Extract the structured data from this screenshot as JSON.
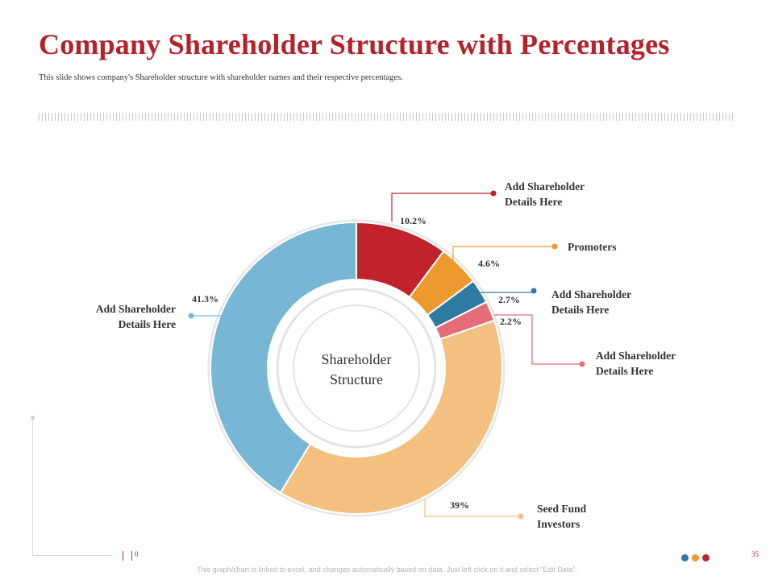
{
  "header": {
    "title": "Company Shareholder Structure with Percentages",
    "subtitle": "This slide shows company's Shareholder  structure with shareholder names and their respective percentages."
  },
  "chart_data": {
    "type": "pie",
    "variant": "donut",
    "center_label": [
      "Shareholder",
      "Structure"
    ],
    "slices": [
      {
        "label": [
          "Add Shareholder",
          "Details Here"
        ],
        "value": 10.2,
        "value_label": "10.2%",
        "color": "#c0232c"
      },
      {
        "label": [
          "Promoters"
        ],
        "value": 4.6,
        "value_label": "4.6%",
        "color": "#ec9a2d"
      },
      {
        "label": [
          "Add Shareholder",
          "Details Here"
        ],
        "value": 2.7,
        "value_label": "2.7%",
        "color": "#2f7aa0"
      },
      {
        "label": [
          "Add Shareholder",
          "Details Here"
        ],
        "value": 2.2,
        "value_label": "2.2%",
        "color": "#e56b78"
      },
      {
        "label": [
          "Seed Fund",
          "Investors"
        ],
        "value": 39,
        "value_label": "39%",
        "color": "#f3c07f"
      },
      {
        "label": [
          "Add Shareholder",
          "Details Here"
        ],
        "value": 41.3,
        "value_label": "41.3%",
        "color": "#77b6d4"
      }
    ]
  },
  "footer": {
    "note": "This graph/chart is linked to excel, and changes automatically based on data. Just left click on it and select “Edit Data”.",
    "left_mark": "0",
    "page_number": "35",
    "dot_colors": [
      "#2f7aa0",
      "#ec9a2d",
      "#c0232c"
    ]
  }
}
